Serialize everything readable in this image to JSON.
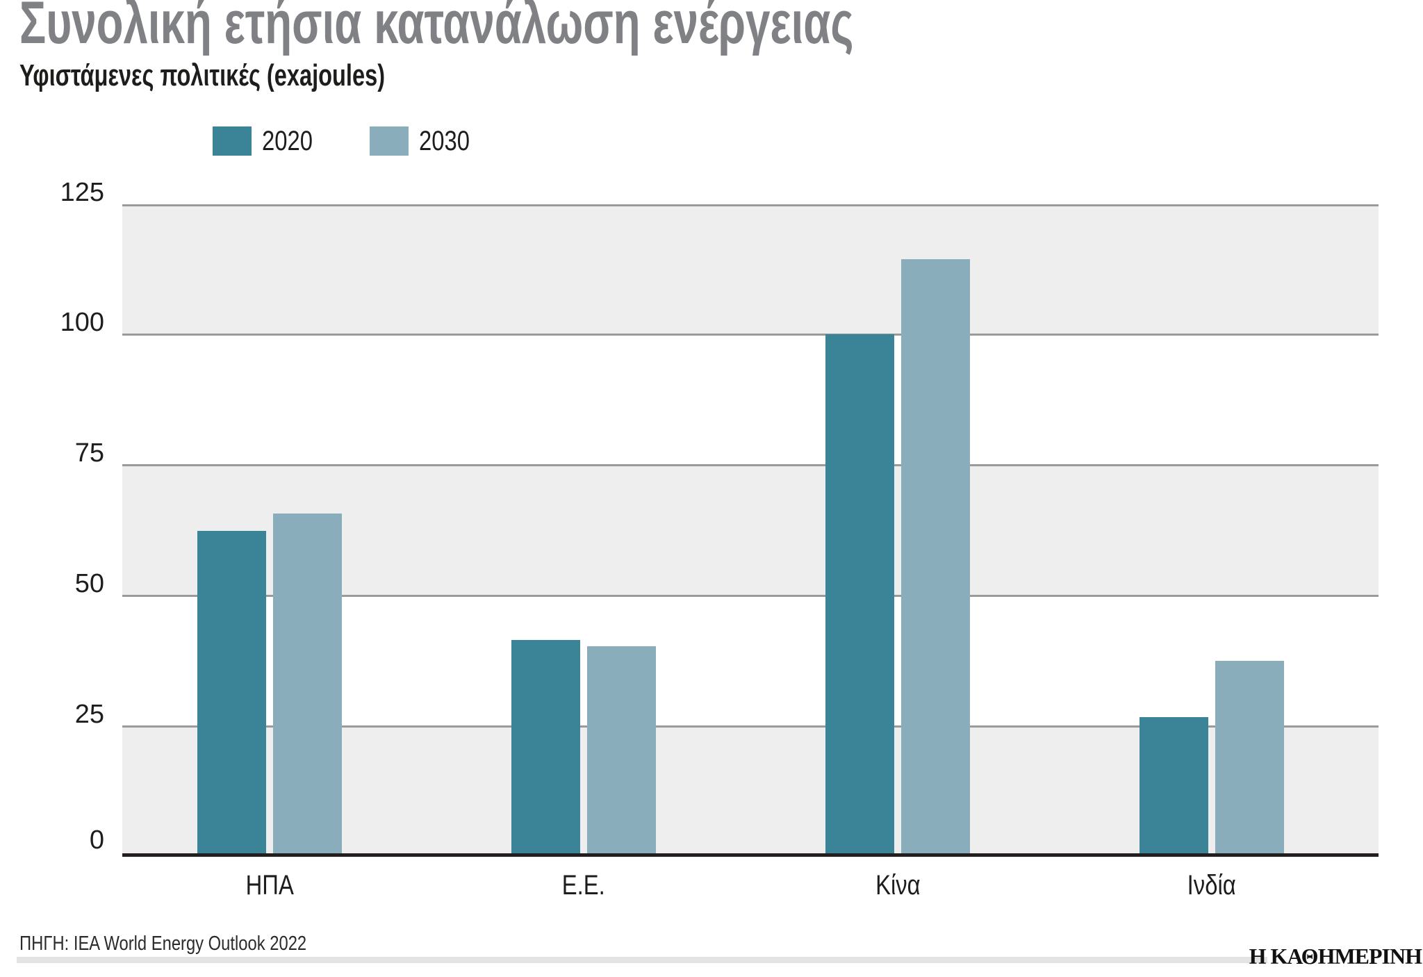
{
  "header": {
    "title": "Συνολική ετήσια κατανάλωση ενέργειας",
    "subtitle": "Υφιστάμενες πολιτικές (exajoules)"
  },
  "legend": [
    {
      "label": "2020",
      "color": "#3b8497"
    },
    {
      "label": "2030",
      "color": "#8aadbc"
    }
  ],
  "axis": {
    "y_ticks": [
      "125",
      "100",
      "75",
      "50",
      "25",
      "0"
    ]
  },
  "categories": [
    "ΗΠΑ",
    "Ε.Ε.",
    "Κίνα",
    "Ινδία"
  ],
  "footer": {
    "source": "ΠΗΓΗ: IEA World Energy Outlook 2022",
    "brand": "Η ΚΑΘΗΜΕΡΙΝΗ"
  },
  "colors": {
    "series_2020": "#3b8497",
    "series_2030": "#8aadbc",
    "band": "#edeeed",
    "title": "#808184"
  },
  "chart_data": {
    "type": "bar",
    "title": "Συνολική ετήσια κατανάλωση ενέργειας",
    "subtitle": "Υφιστάμενες πολιτικές (exajoules)",
    "categories": [
      "ΗΠΑ",
      "Ε.Ε.",
      "Κίνα",
      "Ινδία"
    ],
    "series": [
      {
        "name": "2020",
        "values": [
          62.2,
          41.3,
          100.0,
          26.5
        ],
        "color": "#3b8497"
      },
      {
        "name": "2030",
        "values": [
          65.6,
          40.1,
          114.4,
          37.2
        ],
        "color": "#8aadbc"
      }
    ],
    "xlabel": "",
    "ylabel": "exajoules",
    "ylim": [
      0,
      125
    ],
    "yticks": [
      0,
      25,
      50,
      75,
      100,
      125
    ],
    "grid": true,
    "legend_position": "top-left",
    "source": "ΠΗΓΗ: IEA World Energy Outlook 2022"
  }
}
